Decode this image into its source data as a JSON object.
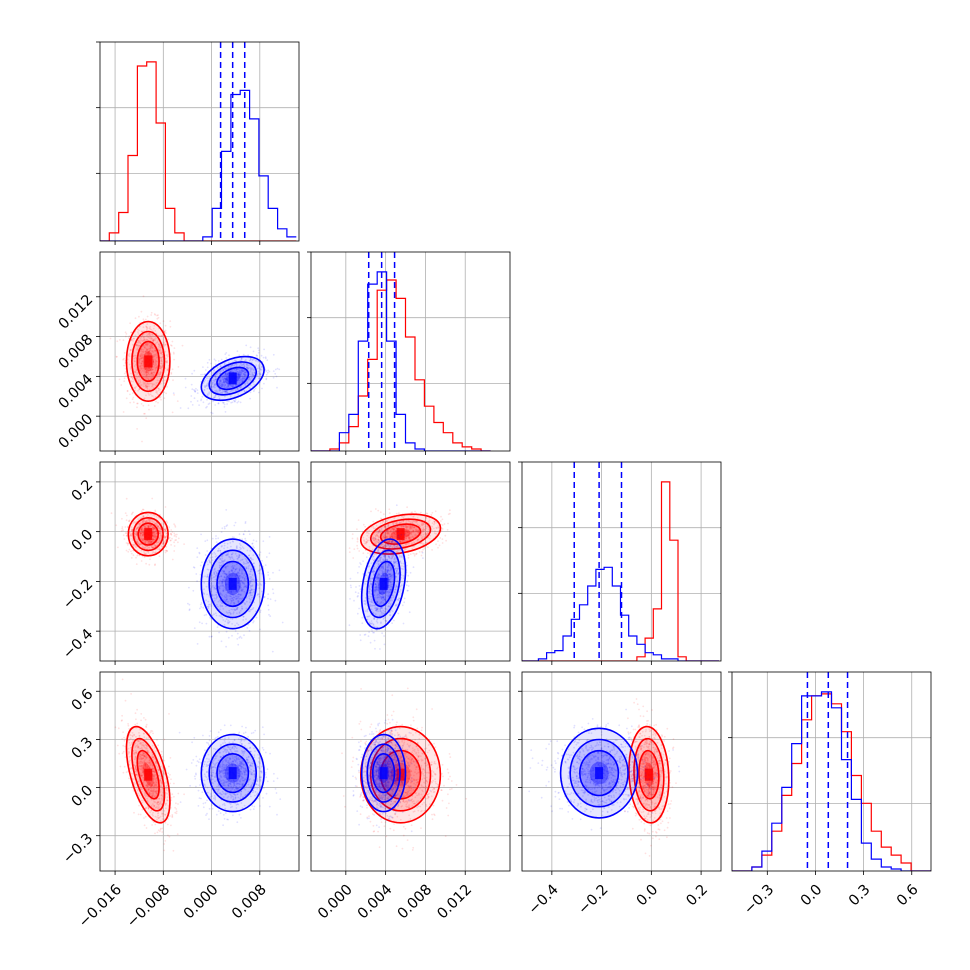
{
  "chart_data": {
    "type": "scatter",
    "subtype": "corner-plot",
    "title": "",
    "grid": true,
    "colors": {
      "red": "#ff0000",
      "blue": "#0000ff"
    },
    "parameters": [
      {
        "range": [
          -0.0185,
          0.0145
        ],
        "ticks": [
          -0.016,
          -0.008,
          0.0,
          0.008
        ],
        "tick_labels": [
          "−0.016",
          "−0.008",
          "0.000",
          "0.008"
        ]
      },
      {
        "range": [
          -0.0035,
          0.0165
        ],
        "ticks": [
          0.0,
          0.004,
          0.008,
          0.012
        ],
        "tick_labels": [
          "0.000",
          "0.004",
          "0.008",
          "0.012"
        ]
      },
      {
        "range": [
          -0.52,
          0.28
        ],
        "ticks": [
          -0.4,
          -0.2,
          0.0,
          0.2
        ],
        "tick_labels": [
          "−0.4",
          "−0.2",
          "0.0",
          "0.2"
        ]
      },
      {
        "range": [
          -0.52,
          0.72
        ],
        "ticks": [
          -0.3,
          0.0,
          0.3,
          0.6
        ],
        "tick_labels": [
          "−0.3",
          "0.0",
          "0.3",
          "0.6"
        ]
      }
    ],
    "series": [
      {
        "color": "red",
        "mean": [
          -0.0105,
          0.0055,
          -0.01,
          0.08
        ],
        "std": [
          0.0018,
          0.002,
          0.04,
          0.15
        ],
        "corr": {
          "0-3": -0.55,
          "1-2": 0.3,
          "2-3": -0.1
        },
        "histograms": [
          {
            "bin_start": -0.0185,
            "bin_width": 0.00155,
            "counts": [
              0,
              4,
              14,
              42,
              86,
              88,
              58,
              16,
              4,
              0,
              0,
              0,
              0,
              0,
              0,
              0,
              0,
              0,
              0,
              0,
              0
            ]
          },
          {
            "bin_start": -0.0035,
            "bin_width": 0.00095,
            "counts": [
              0,
              0,
              1,
              4,
              12,
              27,
              45,
              79,
              84,
              75,
              56,
              35,
              22,
              14,
              9,
              4,
              2,
              1,
              0
            ]
          },
          {
            "bin_start": -0.52,
            "bin_width": 0.033,
            "counts": [
              0,
              0,
              0,
              0,
              0,
              0,
              0,
              0,
              0,
              0,
              0,
              0,
              0,
              0,
              2,
              11,
              25,
              86,
              58,
              2,
              0,
              0,
              0,
              0
            ]
          },
          {
            "bin_start": -0.52,
            "bin_width": 0.062,
            "counts": [
              0,
              0,
              2,
              8,
              20,
              38,
              54,
              76,
              88,
              89,
              84,
              70,
              48,
              34,
              20,
              12,
              8,
              4,
              0,
              0
            ]
          }
        ]
      },
      {
        "color": "blue",
        "mean": [
          0.0035,
          0.0038,
          -0.21,
          0.09
        ],
        "std": [
          0.0026,
          0.0011,
          0.09,
          0.12
        ],
        "corr": {
          "0-1": 0.4,
          "1-2": 0.3,
          "2-3": 0.0
        },
        "histograms": [
          {
            "bin_start": -0.0185,
            "bin_width": 0.00155,
            "counts": [
              0,
              0,
              0,
              0,
              0,
              0,
              0,
              0,
              0,
              0,
              0,
              2,
              16,
              44,
              72,
              74,
              60,
              32,
              16,
              6,
              2
            ]
          },
          {
            "bin_start": -0.0035,
            "bin_width": 0.00095,
            "counts": [
              0,
              0,
              0,
              9,
              18,
              54,
              82,
              88,
              54,
              18,
              4,
              1,
              0,
              0,
              0,
              0,
              0,
              0,
              0
            ]
          },
          {
            "bin_start": -0.52,
            "bin_width": 0.033,
            "counts": [
              0,
              0,
              1,
              4,
              5,
              12,
              20,
              27,
              36,
              44,
              45,
              36,
              22,
              12,
              8,
              4,
              3,
              1,
              1,
              0,
              0,
              0,
              0,
              0
            ]
          },
          {
            "bin_start": -0.52,
            "bin_width": 0.062,
            "counts": [
              0,
              0,
              2,
              10,
              24,
              42,
              64,
              88,
              88,
              90,
              82,
              56,
              36,
              14,
              6,
              2,
              1,
              0,
              0,
              0
            ]
          }
        ],
        "quantiles": [
          [
            0.0015,
            0.0035,
            0.0055
          ],
          [
            0.0023,
            0.0036,
            0.0049
          ],
          [
            -0.31,
            -0.21,
            -0.12
          ],
          [
            -0.05,
            0.08,
            0.2
          ]
        ]
      }
    ]
  }
}
